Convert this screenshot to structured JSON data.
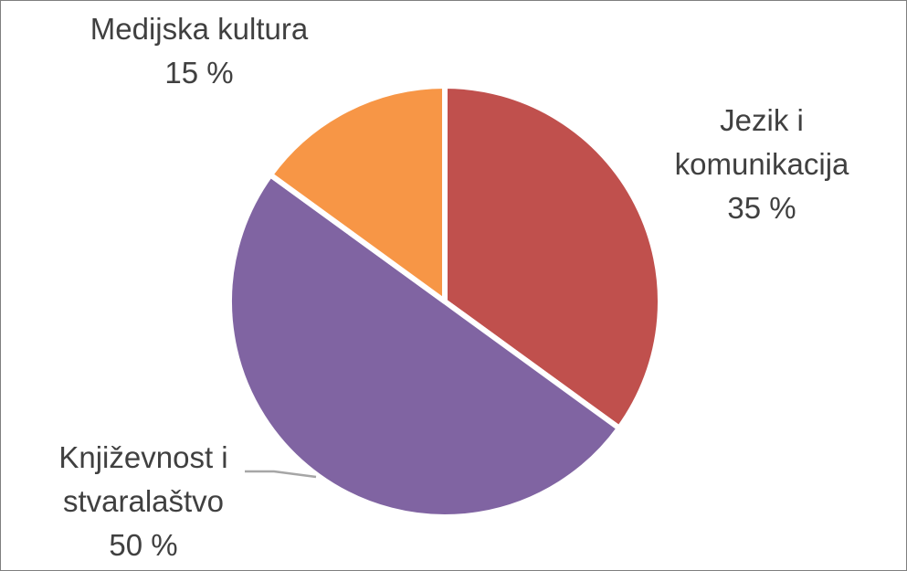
{
  "chart_data": {
    "type": "pie",
    "title": "",
    "slices": [
      {
        "name": "Jezik i komunikacija",
        "label_lines": [
          "Jezik i",
          "komunikacija"
        ],
        "value": 35,
        "value_label": "35 %",
        "color": "#c0504d"
      },
      {
        "name": "Književnost i stvaralaštvo",
        "label_lines": [
          "Književnost i",
          "stvaralaštvo"
        ],
        "value": 50,
        "value_label": "50 %",
        "color": "#8064a2"
      },
      {
        "name": "Medijska kultura",
        "label_lines": [
          "Medijska kultura"
        ],
        "value": 15,
        "value_label": "15 %",
        "color": "#f79646"
      }
    ],
    "start_angle_deg": 0,
    "direction": "clockwise",
    "leader_line_color": "#a6a6a6",
    "slice_border_color": "#ffffff"
  }
}
